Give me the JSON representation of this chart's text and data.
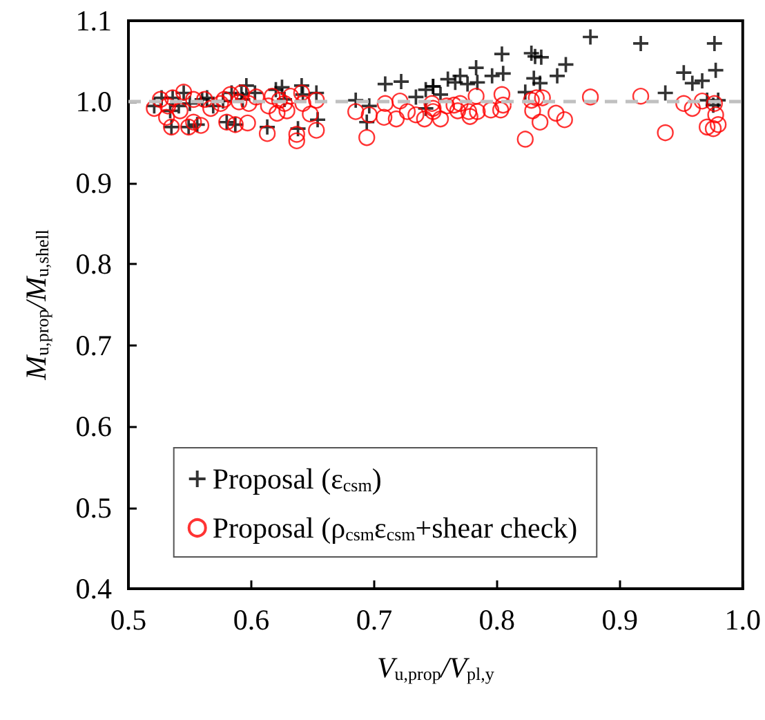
{
  "chart_data": {
    "type": "scatter",
    "xlabel": "V$_{u,prop}$/V$_{pl,y}$",
    "ylabel": "M$_{u,prop}$/M$_{u,shell}$",
    "xlim": [
      0.5,
      1.0
    ],
    "xticks": [
      0.5,
      0.6,
      0.7,
      0.8,
      0.9,
      {
        "value": 1.0,
        "label": "1.0"
      }
    ],
    "ylim": [
      0.4,
      1.1
    ],
    "yticks": [
      0.4,
      0.5,
      0.6,
      0.7,
      0.8,
      0.9,
      {
        "value": 1.0,
        "label": "1.0"
      },
      1.1
    ],
    "grid": false,
    "legend": "bottom",
    "ref_lines": [
      {
        "axis": "y",
        "value": 1.0,
        "color": "#c0c0c0",
        "line_style": "dashed"
      }
    ],
    "series": [
      {
        "name": "Proposal (ε$_{csm}$)",
        "color": "#000000",
        "marker": "cross",
        "x": [
          0.521,
          0.527,
          0.534,
          0.535,
          0.536,
          0.541,
          0.545,
          0.549,
          0.55,
          0.556,
          0.56,
          0.564,
          0.569,
          0.577,
          0.58,
          0.584,
          0.587,
          0.592,
          0.596,
          0.593,
          0.603,
          0.613,
          0.62,
          0.625,
          0.627,
          0.638,
          0.641,
          0.642,
          0.653,
          0.654,
          0.685,
          0.696,
          0.694,
          0.709,
          0.722,
          0.734,
          0.742,
          0.748,
          0.742,
          0.748,
          0.754,
          0.76,
          0.766,
          0.77,
          0.776,
          0.783,
          0.784,
          0.796,
          0.804,
          0.805,
          0.823,
          0.828,
          0.831,
          0.836,
          0.83,
          0.835,
          0.849,
          0.856,
          0.876,
          0.917,
          0.937,
          0.952,
          0.959,
          0.967,
          0.971,
          0.977,
          0.978,
          0.98,
          0.976
        ],
        "values": [
          0.995,
          1.005,
          0.989,
          0.969,
          1.005,
          0.995,
          1.011,
          0.969,
          0.998,
          0.972,
          1.003,
          1.005,
          0.995,
          1.001,
          0.975,
          1.011,
          0.972,
          1.009,
          1.02,
          1.003,
          1.011,
          0.969,
          1.015,
          1.018,
          1.003,
          0.967,
          1.02,
          1.009,
          1.011,
          0.978,
          1.002,
          0.995,
          0.975,
          1.022,
          1.025,
          1.006,
          1.015,
          1.019,
          0.992,
          1.019,
          1.009,
          1.028,
          1.024,
          1.032,
          1.022,
          1.042,
          1.024,
          1.032,
          1.059,
          1.035,
          1.012,
          1.06,
          1.056,
          1.055,
          1.029,
          1.023,
          1.032,
          1.046,
          1.08,
          1.072,
          1.011,
          1.036,
          1.023,
          1.026,
          1.002,
          1.072,
          1.039,
          1.002,
          0.996
        ]
      },
      {
        "name": "Proposal (ρ$_{csm}$ε$_{csm}$+shear check)",
        "color": "#ff0000",
        "marker": "circle",
        "x": [
          0.521,
          0.526,
          0.532,
          0.531,
          0.536,
          0.542,
          0.545,
          0.535,
          0.549,
          0.553,
          0.553,
          0.559,
          0.562,
          0.567,
          0.575,
          0.578,
          0.58,
          0.583,
          0.587,
          0.59,
          0.592,
          0.597,
          0.598,
          0.604,
          0.613,
          0.614,
          0.617,
          0.621,
          0.623,
          0.627,
          0.629,
          0.632,
          0.637,
          0.637,
          0.641,
          0.642,
          0.648,
          0.653,
          0.653,
          0.685,
          0.694,
          0.696,
          0.708,
          0.709,
          0.718,
          0.721,
          0.727,
          0.734,
          0.741,
          0.748,
          0.747,
          0.748,
          0.754,
          0.759,
          0.765,
          0.77,
          0.768,
          0.777,
          0.778,
          0.783,
          0.784,
          0.795,
          0.803,
          0.805,
          0.804,
          0.823,
          0.828,
          0.829,
          0.832,
          0.837,
          0.835,
          0.848,
          0.855,
          0.876,
          0.917,
          0.937,
          0.952,
          0.959,
          0.967,
          0.971,
          0.976,
          0.98,
          0.978,
          0.977
        ],
        "values": [
          0.992,
          1.003,
          0.995,
          0.981,
          1.005,
          0.989,
          1.012,
          0.969,
          0.969,
          1.003,
          0.975,
          0.971,
          1.003,
          0.992,
          0.998,
          1.003,
          0.975,
          1.009,
          0.972,
          1.0,
          1.011,
          0.974,
          0.998,
          1.006,
          0.961,
          0.995,
          1.007,
          0.986,
          1.002,
          0.998,
          0.989,
          1.007,
          0.952,
          0.96,
          1.011,
          0.998,
          0.985,
          0.965,
          1.002,
          0.988,
          0.956,
          0.984,
          0.981,
          0.998,
          0.979,
          1.001,
          0.988,
          0.984,
          0.979,
          0.992,
          0.998,
          0.988,
          0.979,
          0.995,
          0.996,
          0.998,
          0.989,
          0.988,
          0.982,
          1.007,
          0.988,
          0.99,
          0.99,
          0.996,
          1.009,
          0.954,
          1.002,
          0.989,
          1.005,
          1.005,
          0.975,
          0.986,
          0.978,
          1.006,
          1.007,
          0.962,
          0.998,
          0.992,
          1.001,
          0.969,
          0.967,
          0.972,
          0.984,
          0.998
        ]
      }
    ]
  }
}
